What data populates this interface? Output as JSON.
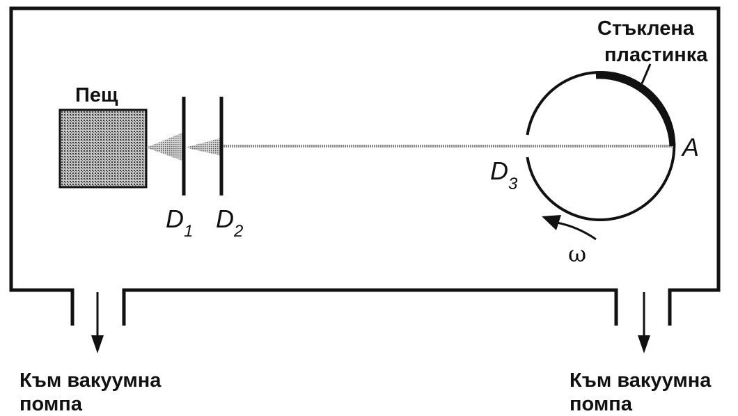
{
  "labels": {
    "oven": "Пещ",
    "glass_plate_line1": "Стъклена",
    "glass_plate_line2": "пластинка",
    "point_a": "A",
    "d1_letter": "D",
    "d1_sub": "1",
    "d2_letter": "D",
    "d2_sub": "2",
    "d3_letter": "D",
    "d3_sub": "3",
    "omega": "ω",
    "pump_left_line1": "Към вакуумна",
    "pump_left_line2": "помпа",
    "pump_right_line1": "Към вакуумна",
    "pump_right_line2": "помпа"
  },
  "colors": {
    "ink": "#111111",
    "oven_fill": "#9a9a9a",
    "beam": "#8a8a8a",
    "background": "#ffffff"
  }
}
